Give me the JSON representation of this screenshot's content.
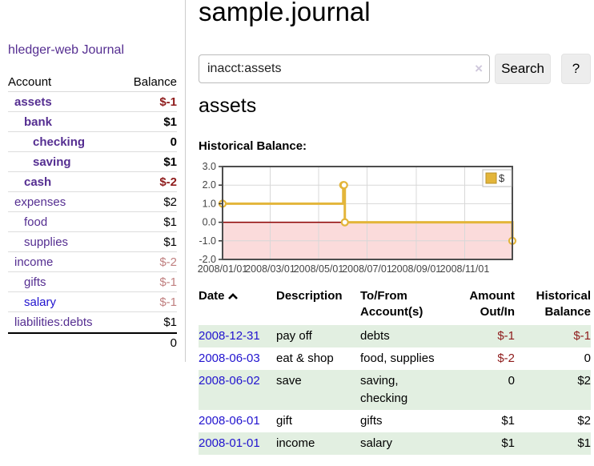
{
  "colors": {
    "link_purple": "#552e91",
    "link_blue": "#2113cf",
    "neg_strong": "#8e1b1b",
    "neg_soft": "#c08080",
    "row_green": "#e2efe1",
    "chart_pink": "#fbdbdb",
    "chart_gold": "#e3b53a",
    "zero_line": "#8b0000"
  },
  "sidebar": {
    "app_title": "hledger-web",
    "journal_link": "Journal",
    "account_header": "Account",
    "balance_header": "Balance",
    "accounts": [
      {
        "name": "assets",
        "balance": "$-1",
        "depth": 1,
        "bold": true
      },
      {
        "name": "bank",
        "balance": "$1",
        "depth": 2,
        "bold": true
      },
      {
        "name": "checking",
        "balance": "0",
        "depth": 3,
        "bold": true
      },
      {
        "name": "saving",
        "balance": "$1",
        "depth": 3,
        "bold": true
      },
      {
        "name": "cash",
        "balance": "$-2",
        "depth": 2,
        "bold": true
      },
      {
        "name": "expenses",
        "balance": "$2",
        "depth": 1,
        "bold": false
      },
      {
        "name": "food",
        "balance": "$1",
        "depth": 2,
        "bold": false
      },
      {
        "name": "supplies",
        "balance": "$1",
        "depth": 2,
        "bold": false
      },
      {
        "name": "income",
        "balance": "$-2",
        "depth": 1,
        "bold": false
      },
      {
        "name": "gifts",
        "balance": "$-1",
        "depth": 2,
        "bold": false
      },
      {
        "name": "salary",
        "balance": "$-1",
        "depth": 2,
        "bold": false,
        "link": "blue"
      },
      {
        "name": "liabilities:debts",
        "balance": "$1",
        "depth": 1,
        "bold": false
      }
    ],
    "total": "0"
  },
  "main": {
    "title": "sample.journal",
    "search": {
      "value": "inacct:assets",
      "clear_icon": "×",
      "search_button": "Search",
      "help_button": "?"
    },
    "heading": "assets",
    "chart_title": "Historical Balance:"
  },
  "chart_data": {
    "type": "line",
    "step": true,
    "title": "Historical Balance",
    "series": [
      {
        "name": "$",
        "points": [
          [
            "2008-01-01",
            1
          ],
          [
            "2008-06-01",
            2
          ],
          [
            "2008-06-02",
            2
          ],
          [
            "2008-06-03",
            0
          ],
          [
            "2008-12-31",
            -1
          ]
        ]
      }
    ],
    "x_ticks": [
      "2008/01/01",
      "2008/03/01",
      "2008/05/01",
      "2008/07/01",
      "2008/09/01",
      "2008/11/01"
    ],
    "y_ticks": [
      3.0,
      2.0,
      1.0,
      0.0,
      -1.0,
      -2.0
    ],
    "ylim": [
      -2,
      3
    ],
    "x_range": [
      "2008-01-01",
      "2008-12-31"
    ],
    "legend": {
      "label": "$",
      "position": "top-right"
    },
    "negative_region_shaded": true,
    "grid": true
  },
  "register": {
    "headers": {
      "date": "Date",
      "description": "Description",
      "accounts": "To/From Account(s)",
      "amount": "Amount Out/In",
      "balance": "Historical Balance"
    },
    "sort_icon": "chevron-up-icon",
    "rows": [
      {
        "date": "2008-12-31",
        "description": "pay off",
        "accounts": "debts",
        "amount": "$-1",
        "balance": "$-1"
      },
      {
        "date": "2008-06-03",
        "description": "eat & shop",
        "accounts": "food, supplies",
        "amount": "$-2",
        "balance": "0"
      },
      {
        "date": "2008-06-02",
        "description": "save",
        "accounts": "saving, checking",
        "amount": "0",
        "balance": "$2"
      },
      {
        "date": "2008-06-01",
        "description": "gift",
        "accounts": "gifts",
        "amount": "$1",
        "balance": "$2"
      },
      {
        "date": "2008-01-01",
        "description": "income",
        "accounts": "salary",
        "amount": "$1",
        "balance": "$1"
      }
    ]
  }
}
